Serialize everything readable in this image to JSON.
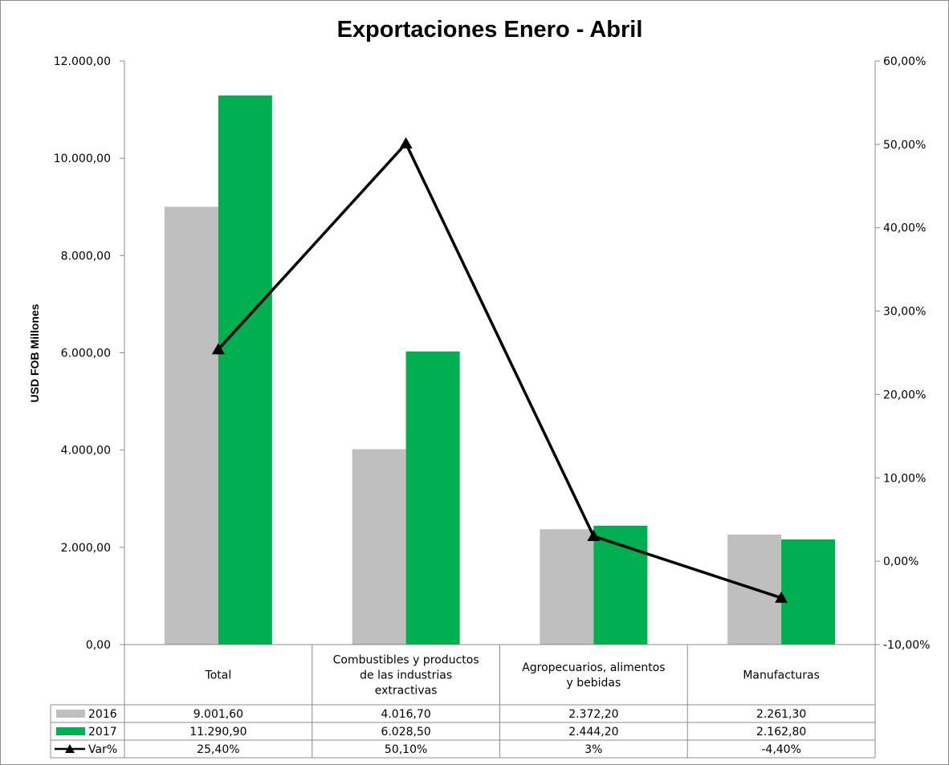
{
  "chart_data": {
    "type": "bar",
    "title": "Exportaciones Enero - Abril",
    "ylabel": "USD FOB Millones",
    "ylim": [
      0,
      12000
    ],
    "y2lim": [
      -10,
      60
    ],
    "y_ticks": [
      "0,00",
      "2.000,00",
      "4.000,00",
      "6.000,00",
      "8.000,00",
      "10.000,00",
      "12.000,00"
    ],
    "y2_ticks": [
      "-10,00%",
      "0,00%",
      "10,00%",
      "20,00%",
      "30,00%",
      "40,00%",
      "50,00%",
      "60,00%"
    ],
    "categories": [
      [
        "Total"
      ],
      [
        "Combustibles y productos",
        "de las industrias",
        "extractivas"
      ],
      [
        "Agropecuarios, alimentos",
        "y bebidas"
      ],
      [
        "Manufacturas"
      ]
    ],
    "series": [
      {
        "name": "2016",
        "type": "bar",
        "color": "#bfbfbf",
        "values": [
          9001.6,
          4016.7,
          2372.2,
          2261.3
        ],
        "labels": [
          "9.001,60",
          "4.016,70",
          "2.372,20",
          "2.261,30"
        ]
      },
      {
        "name": "2017",
        "type": "bar",
        "color": "#00b050",
        "values": [
          11290.9,
          6028.5,
          2444.2,
          2162.8
        ],
        "labels": [
          "11.290,90",
          "6.028,50",
          "2.444,20",
          "2.162,80"
        ]
      },
      {
        "name": "Var%",
        "type": "line",
        "axis": "right",
        "color": "#000000",
        "marker": "triangle",
        "values": [
          25.4,
          50.1,
          3,
          -4.4
        ],
        "labels": [
          "25,40%",
          "50,10%",
          "3%",
          "-4,40%"
        ]
      }
    ],
    "grid": false,
    "legend": "data-table"
  }
}
